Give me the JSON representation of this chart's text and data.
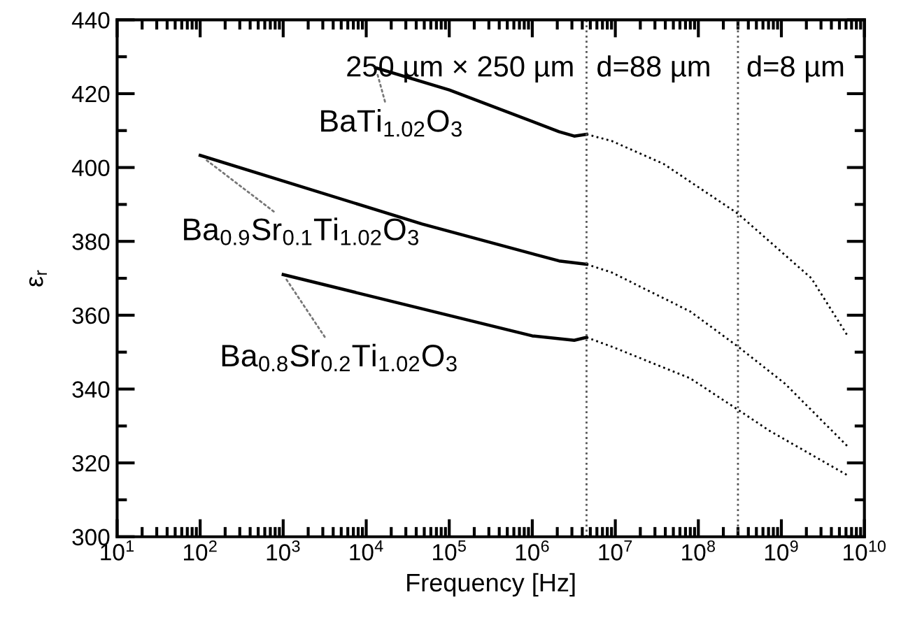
{
  "chart_data": {
    "type": "line",
    "xlabel": "Frequency [Hz]",
    "ylabel": "ε$_{r}$",
    "xlim": [
      10,
      10000000000
    ],
    "ylim": [
      300,
      440
    ],
    "log": "x",
    "xticks": [
      {
        "value": 10,
        "label": "10$^{1}$"
      },
      {
        "value": 100,
        "label": "10$^{2}$"
      },
      {
        "value": 1000,
        "label": "10$^{3}$"
      },
      {
        "value": 10000,
        "label": "10$^{4}$"
      },
      {
        "value": 100000,
        "label": "10$^{5}$"
      },
      {
        "value": 1000000,
        "label": "10$^{6}$"
      },
      {
        "value": 10000000,
        "label": "10$^{7}$"
      },
      {
        "value": 100000000,
        "label": "10$^{8}$"
      },
      {
        "value": 1000000000,
        "label": "10$^{9}$"
      },
      {
        "value": 10000000000,
        "label": "10$^{10}$"
      }
    ],
    "yticks": [
      300,
      320,
      340,
      360,
      380,
      400,
      420,
      440
    ],
    "grid": false,
    "legend": false,
    "marker": "none",
    "series": [
      {
        "name": "BaTi$_{1.02}$O$_{3}$",
        "color": "#000000",
        "line_style": "solid",
        "x": [
          13000,
          100000,
          2100000,
          3200000,
          4500000
        ],
        "values": [
          427,
          421,
          409.7,
          408.5,
          409
        ]
      },
      {
        "color": "#000000",
        "line_style": "dotted",
        "x": [
          4500000,
          9000000,
          38000000,
          300000000,
          2300000000,
          6200000000
        ],
        "values": [
          409,
          407.2,
          401,
          387.5,
          370,
          354.6
        ]
      },
      {
        "name": "Ba$_{0.9}$Sr$_{0.1}$Ti$_{1.02}$O$_{3}$",
        "color": "#000000",
        "line_style": "solid",
        "x": [
          100,
          47000,
          2100000,
          4500000
        ],
        "values": [
          403.3,
          384.7,
          374.7,
          373.8
        ]
      },
      {
        "color": "#000000",
        "line_style": "dotted",
        "x": [
          4500000,
          9000000,
          80000000,
          300000000,
          1100000000,
          6200000000
        ],
        "values": [
          373.8,
          371.6,
          361,
          351.5,
          341.5,
          324.6
        ]
      },
      {
        "name": "Ba$_{0.8}$Sr$_{0.2}$Ti$_{1.02}$O$_{3}$",
        "color": "#000000",
        "line_style": "solid",
        "x": [
          1000,
          1000000,
          3200000,
          4500000
        ],
        "values": [
          371,
          354.4,
          353.2,
          354
        ]
      },
      {
        "color": "#000000",
        "line_style": "dotted",
        "x": [
          4500000,
          9000000,
          80000000,
          300000000,
          720000000,
          6200000000
        ],
        "values": [
          354,
          351.5,
          342.9,
          334.4,
          328.7,
          316.7
        ]
      }
    ],
    "ref_lines": [
      {
        "axis": "x",
        "value": 4500000,
        "color": "#555555",
        "line_style": "dotted"
      },
      {
        "axis": "x",
        "value": 300000000,
        "color": "#555555",
        "line_style": "dotted"
      }
    ],
    "annotations": [
      "250 µm × 250 µm",
      "d=88 µm",
      "d=8 µm"
    ]
  }
}
